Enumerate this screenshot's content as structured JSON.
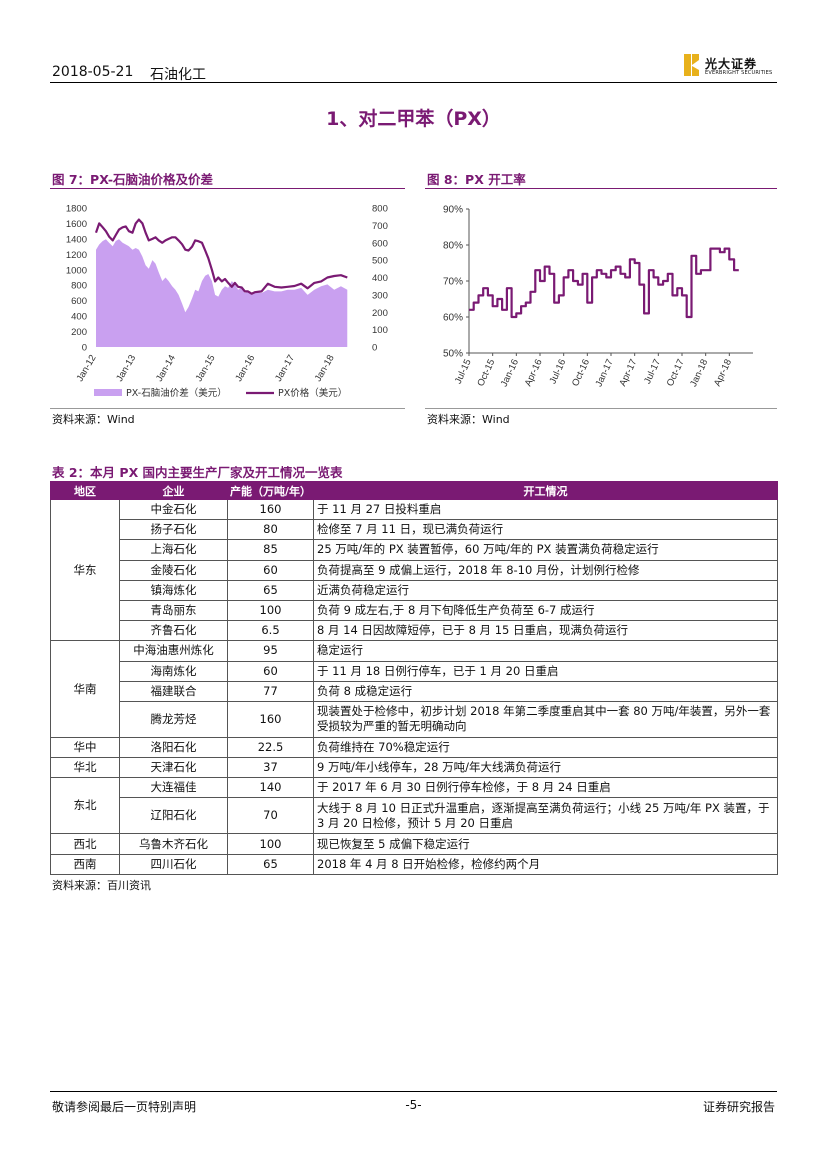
{
  "header": {
    "date": "2018-05-21",
    "sector": "石油化工",
    "logo_cn": "光大证券",
    "logo_en": "EVERBRIGHT SECURITIES"
  },
  "section_title": "1、对二甲苯（PX）",
  "figure7": {
    "title": "图 7：PX-石脑油价格及价差",
    "source": "资料来源：Wind",
    "chart_data": {
      "type": "area",
      "x_ticks": [
        "Jan-12",
        "Jan-13",
        "Jan-14",
        "Jan-15",
        "Jan-16",
        "Jan-17",
        "Jan-18"
      ],
      "y_left_ticks": [
        "0",
        "200",
        "400",
        "600",
        "800",
        "1000",
        "1200",
        "1400",
        "1600",
        "1800"
      ],
      "y_right_ticks": [
        "0",
        "100",
        "200",
        "300",
        "400",
        "500",
        "600",
        "700",
        "800"
      ],
      "y_left_range": [
        0,
        1800
      ],
      "y_right_range": [
        0,
        800
      ],
      "colors": {
        "spread": "#c9a0f0",
        "price": "#7a1a73"
      },
      "series": [
        {
          "name": "PX-石脑油价差（美元）",
          "axis": "right",
          "x": [
            2012.0,
            2012.08,
            2012.17,
            2012.25,
            2012.33,
            2012.42,
            2012.5,
            2012.58,
            2012.67,
            2012.75,
            2012.83,
            2012.92,
            2013.0,
            2013.08,
            2013.17,
            2013.25,
            2013.33,
            2013.42,
            2013.5,
            2013.58,
            2013.67,
            2013.75,
            2013.83,
            2013.92,
            2014.0,
            2014.08,
            2014.17,
            2014.25,
            2014.33,
            2014.42,
            2014.5,
            2014.58,
            2014.67,
            2014.75,
            2014.83,
            2014.92,
            2015.0,
            2015.08,
            2015.17,
            2015.25,
            2015.33,
            2015.42,
            2015.5,
            2015.58,
            2015.67,
            2015.75,
            2015.83,
            2015.92,
            2016.0,
            2016.17,
            2016.33,
            2016.5,
            2016.67,
            2016.83,
            2017.0,
            2017.17,
            2017.33,
            2017.5,
            2017.67,
            2017.83,
            2018.0,
            2018.17,
            2018.33
          ],
          "values": [
            560,
            590,
            610,
            620,
            600,
            580,
            610,
            620,
            600,
            590,
            580,
            560,
            570,
            560,
            520,
            470,
            450,
            500,
            480,
            430,
            380,
            400,
            380,
            350,
            330,
            300,
            250,
            200,
            230,
            280,
            330,
            320,
            380,
            410,
            420,
            380,
            300,
            290,
            330,
            350,
            340,
            380,
            360,
            330,
            340,
            310,
            320,
            310,
            320,
            310,
            330,
            320,
            320,
            330,
            330,
            340,
            300,
            330,
            350,
            360,
            330,
            350,
            330
          ]
        },
        {
          "name": "PX价格（美元）",
          "axis": "left",
          "x": [
            2012.0,
            2012.08,
            2012.17,
            2012.25,
            2012.33,
            2012.42,
            2012.5,
            2012.58,
            2012.67,
            2012.75,
            2012.83,
            2012.92,
            2013.0,
            2013.08,
            2013.17,
            2013.25,
            2013.33,
            2013.42,
            2013.5,
            2013.58,
            2013.67,
            2013.75,
            2013.83,
            2013.92,
            2014.0,
            2014.08,
            2014.17,
            2014.25,
            2014.33,
            2014.42,
            2014.5,
            2014.58,
            2014.67,
            2014.75,
            2014.83,
            2014.92,
            2015.0,
            2015.08,
            2015.17,
            2015.25,
            2015.33,
            2015.42,
            2015.5,
            2015.58,
            2015.67,
            2015.75,
            2015.83,
            2015.92,
            2016.0,
            2016.17,
            2016.33,
            2016.5,
            2016.67,
            2016.83,
            2017.0,
            2017.17,
            2017.33,
            2017.5,
            2017.67,
            2017.83,
            2018.0,
            2018.17,
            2018.33
          ],
          "values": [
            1480,
            1600,
            1550,
            1500,
            1430,
            1380,
            1450,
            1520,
            1550,
            1560,
            1500,
            1480,
            1600,
            1650,
            1600,
            1480,
            1380,
            1400,
            1420,
            1380,
            1350,
            1380,
            1400,
            1420,
            1420,
            1380,
            1330,
            1260,
            1250,
            1300,
            1380,
            1370,
            1350,
            1250,
            1150,
            1000,
            850,
            900,
            850,
            880,
            830,
            780,
            830,
            780,
            770,
            720,
            720,
            690,
            710,
            720,
            820,
            780,
            770,
            780,
            790,
            820,
            760,
            830,
            850,
            900,
            920,
            930,
            900
          ]
        }
      ]
    }
  },
  "figure8": {
    "title": "图 8：PX 开工率",
    "source": "资料来源：Wind",
    "chart_data": {
      "type": "line",
      "x_ticks": [
        "Jul-15",
        "Oct-15",
        "Jan-16",
        "Apr-16",
        "Jul-16",
        "Oct-16",
        "Jan-17",
        "Apr-17",
        "Jul-17",
        "Oct-17",
        "Jan-18",
        "Apr-18"
      ],
      "y_ticks": [
        "50%",
        "60%",
        "70%",
        "80%",
        "90%"
      ],
      "y_range": [
        50,
        90
      ],
      "color": "#7a1a73",
      "x": [
        2015.5,
        2015.55,
        2015.6,
        2015.65,
        2015.7,
        2015.75,
        2015.8,
        2015.85,
        2015.9,
        2015.95,
        2016.0,
        2016.05,
        2016.1,
        2016.15,
        2016.2,
        2016.25,
        2016.3,
        2016.35,
        2016.4,
        2016.45,
        2016.5,
        2016.55,
        2016.6,
        2016.65,
        2016.7,
        2016.75,
        2016.8,
        2016.85,
        2016.9,
        2016.95,
        2017.0,
        2017.05,
        2017.1,
        2017.15,
        2017.2,
        2017.25,
        2017.3,
        2017.35,
        2017.4,
        2017.45,
        2017.5,
        2017.55,
        2017.6,
        2017.65,
        2017.7,
        2017.75,
        2017.8,
        2017.85,
        2017.9,
        2017.95,
        2018.0,
        2018.05,
        2018.1,
        2018.15,
        2018.2,
        2018.25,
        2018.3,
        2018.35
      ],
      "values": [
        62,
        64,
        66,
        68,
        66,
        63,
        65,
        62,
        68,
        60,
        61,
        63,
        64,
        67,
        73,
        70,
        74,
        72,
        64,
        66,
        71,
        73,
        70,
        69,
        72,
        64,
        71,
        73,
        72,
        71,
        73,
        74,
        72,
        71,
        76,
        75,
        69,
        61,
        73,
        71,
        69,
        70,
        72,
        66,
        68,
        66,
        60,
        77,
        72,
        73,
        73,
        79,
        79,
        78,
        79,
        76,
        73,
        73
      ]
    }
  },
  "table2": {
    "title": "表 2：本月 PX 国内主要生产厂家及开工情况一览表",
    "headers": {
      "region": "地区",
      "company": "企业",
      "capacity": "产能（万吨/年）",
      "status": "开工情况"
    },
    "r0": {
      "region": "华东",
      "company": "中金石化",
      "capacity": "160",
      "status": "于 11 月 27 日投料重启"
    },
    "r1": {
      "company": "扬子石化",
      "capacity": "80",
      "status": "检修至 7 月 11 日，现已满负荷运行"
    },
    "r2": {
      "company": "上海石化",
      "capacity": "85",
      "status": "25 万吨/年的 PX 装置暂停，60 万吨/年的 PX 装置满负荷稳定运行"
    },
    "r3": {
      "company": "金陵石化",
      "capacity": "60",
      "status": "负荷提高至 9 成偏上运行，2018 年 8-10 月份，计划例行检修"
    },
    "r4": {
      "company": "镇海炼化",
      "capacity": "65",
      "status": "近满负荷稳定运行"
    },
    "r5": {
      "company": "青岛丽东",
      "capacity": "100",
      "status": "负荷 9 成左右,于 8 月下旬降低生产负荷至 6-7 成运行"
    },
    "r6": {
      "company": "齐鲁石化",
      "capacity": "6.5",
      "status": "8 月 14 日因故障短停，已于 8 月 15 日重启，现满负荷运行"
    },
    "r7": {
      "region": "华南",
      "company": "中海油惠州炼化",
      "capacity": "95",
      "status": "稳定运行"
    },
    "r8": {
      "company": "海南炼化",
      "capacity": "60",
      "status": "于 11 月 18 日例行停车，已于 1 月 20 日重启"
    },
    "r9": {
      "company": "福建联合",
      "capacity": "77",
      "status": "负荷 8 成稳定运行"
    },
    "r10": {
      "company": "腾龙芳烃",
      "capacity": "160",
      "status": "现装置处于检修中，初步计划 2018 年第二季度重启其中一套 80 万吨/年装置，另外一套受损较为严重的暂无明确动向"
    },
    "r11": {
      "region": "华中",
      "company": "洛阳石化",
      "capacity": "22.5",
      "status": "负荷维持在 70%稳定运行"
    },
    "r12": {
      "region": "华北",
      "company": "天津石化",
      "capacity": "37",
      "status": "9 万吨/年小线停车，28 万吨/年大线满负荷运行"
    },
    "r13": {
      "region": "东北",
      "company": "大连福佳",
      "capacity": "140",
      "status": "于 2017 年 6 月 30 日例行停车检修，于 8 月 24 日重启"
    },
    "r14": {
      "company": "辽阳石化",
      "capacity": "70",
      "status": "大线于 8 月 10 日正式升温重启，逐渐提高至满负荷运行；小线 25 万吨/年 PX 装置，于 3 月 20 日检修，预计 5 月 20 日重启"
    },
    "r15": {
      "region": "西北",
      "company": "乌鲁木齐石化",
      "capacity": "100",
      "status": "现已恢复至 5 成偏下稳定运行"
    },
    "r16": {
      "region": "西南",
      "company": "四川石化",
      "capacity": "65",
      "status": "2018 年 4 月 8 日开始检修，检修约两个月"
    },
    "source": "资料来源：百川资讯"
  },
  "footer": {
    "disclaimer": "敬请参阅最后一页特别声明",
    "page": "-5-",
    "report_type": "证券研究报告"
  }
}
